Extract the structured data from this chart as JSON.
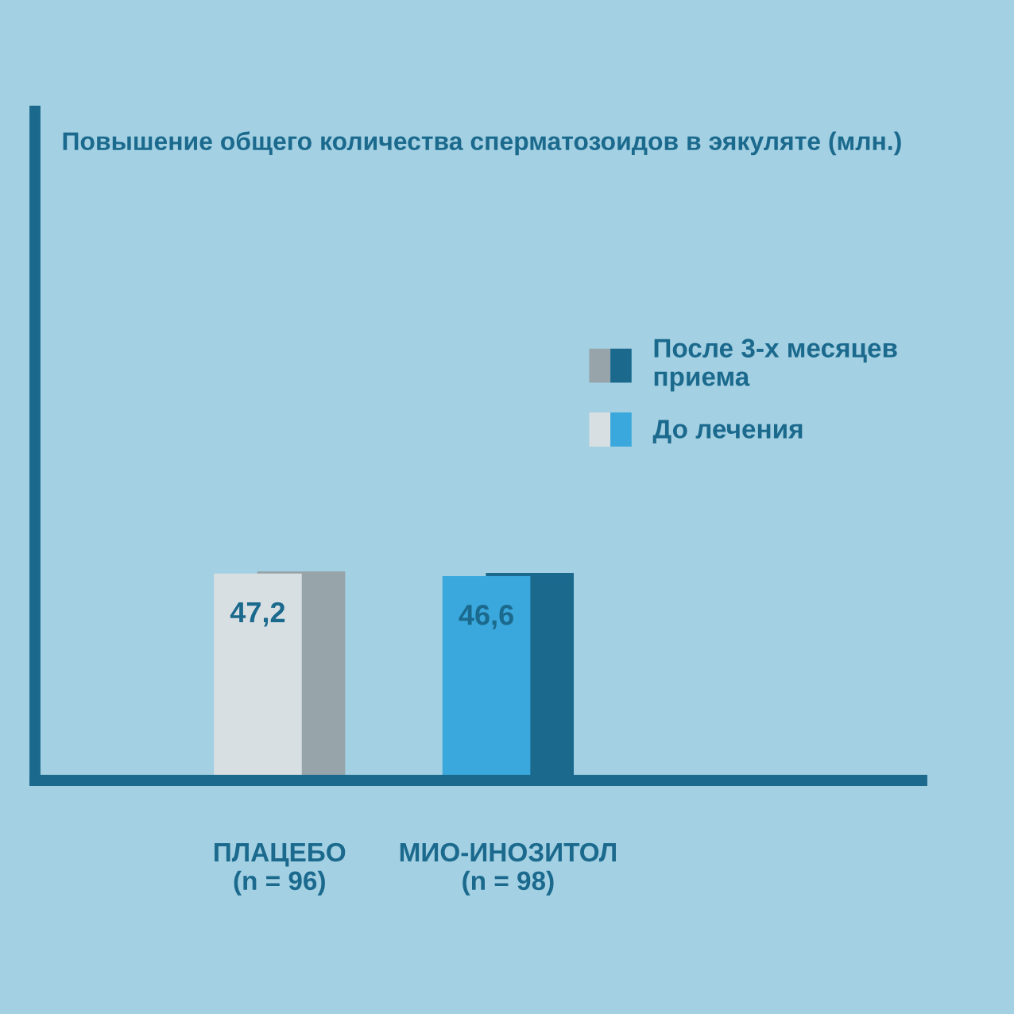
{
  "chart_data": {
    "type": "bar",
    "title": "Повышение общего количества сперматозоидов в эякуляте (млн.)",
    "categories": [
      "ПЛАЦЕБО\n(n = 96)",
      "МИО-ИНОЗИТОЛ\n(n = 98)"
    ],
    "series": [
      {
        "name": "После 3-х месяцев\nприема",
        "colors": [
          "#97a4aa",
          "#1b6a8e"
        ],
        "values": [
          47.7,
          47.3
        ]
      },
      {
        "name": "До лечения",
        "colors": [
          "#d8dfe2",
          "#3aa8dc"
        ],
        "values": [
          47.2,
          46.6
        ],
        "value_labels": [
          "47,2",
          "46,6"
        ]
      }
    ],
    "legend": "right"
  }
}
